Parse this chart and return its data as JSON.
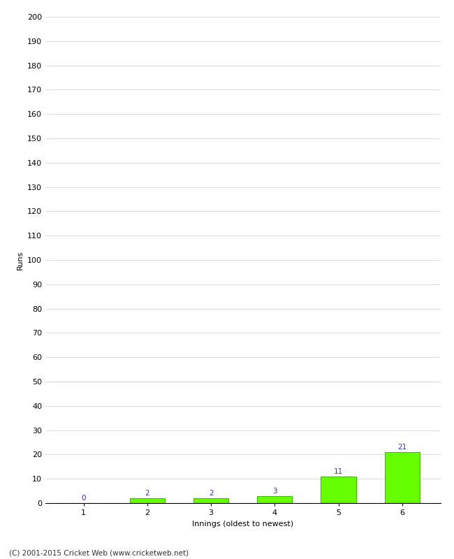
{
  "categories": [
    "1",
    "2",
    "3",
    "4",
    "5",
    "6"
  ],
  "values": [
    0,
    2,
    2,
    3,
    11,
    21
  ],
  "bar_color": "#66ff00",
  "bar_edge_color": "#44bb00",
  "value_label_color": "#3333aa",
  "xlabel": "Innings (oldest to newest)",
  "ylabel": "Runs",
  "ylim": [
    0,
    200
  ],
  "yticks": [
    0,
    10,
    20,
    30,
    40,
    50,
    60,
    70,
    80,
    90,
    100,
    110,
    120,
    130,
    140,
    150,
    160,
    170,
    180,
    190,
    200
  ],
  "background_color": "#ffffff",
  "footer_text": "(C) 2001-2015 Cricket Web (www.cricketweb.net)",
  "value_fontsize": 7.5,
  "axis_label_fontsize": 8,
  "tick_fontsize": 8,
  "footer_fontsize": 7.5,
  "bar_width": 0.55
}
